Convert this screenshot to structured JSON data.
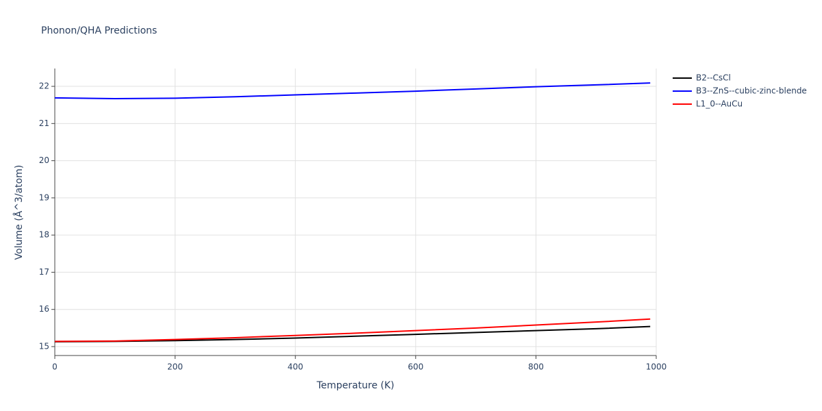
{
  "chart_data": {
    "type": "line",
    "title": "Phonon/QHA Predictions",
    "x_label": "Temperature (K)",
    "y_label": "Volume (Å^3/atom)",
    "x": [
      0,
      100,
      200,
      300,
      400,
      500,
      600,
      700,
      800,
      900,
      990
    ],
    "series": [
      {
        "name": "B2--CsCl",
        "color": "#000000",
        "values": [
          15.13,
          15.14,
          15.16,
          15.19,
          15.23,
          15.28,
          15.33,
          15.38,
          15.43,
          15.48,
          15.54
        ]
      },
      {
        "name": "B3--ZnS--cubic-zinc-blende",
        "color": "#0000ff",
        "values": [
          21.69,
          21.67,
          21.68,
          21.72,
          21.77,
          21.82,
          21.87,
          21.93,
          21.99,
          22.04,
          22.09
        ]
      },
      {
        "name": "L1_0--AuCu",
        "color": "#ff0000",
        "values": [
          15.14,
          15.15,
          15.19,
          15.24,
          15.3,
          15.36,
          15.43,
          15.5,
          15.58,
          15.66,
          15.74
        ]
      }
    ],
    "xlim": [
      0,
      1000
    ],
    "xticks": [
      0,
      200,
      400,
      600,
      800,
      1000
    ],
    "ylim": [
      14.76,
      22.48
    ],
    "yticks": [
      15,
      16,
      17,
      18,
      19,
      20,
      21,
      22
    ],
    "grid": true,
    "legend": "outside-right"
  }
}
